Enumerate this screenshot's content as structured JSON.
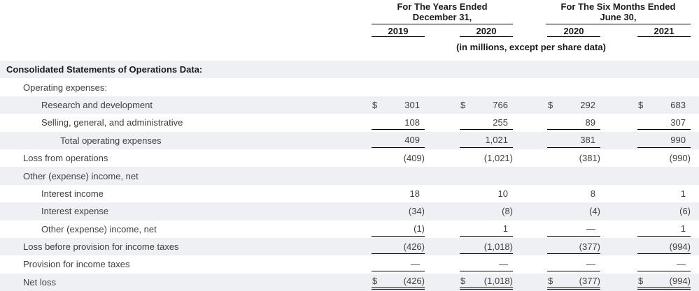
{
  "currency_symbol": "$",
  "header": {
    "group1": {
      "line1": "For The Years Ended",
      "line2": "December 31,"
    },
    "group2": {
      "line1": "For The Six Months Ended",
      "line2": "June 30,"
    },
    "years": [
      "2019",
      "2020",
      "2020",
      "2021"
    ],
    "units_note": "(in millions, except per share data)"
  },
  "table": {
    "rows": [
      {
        "label": "Consolidated Statements of Operations Data:",
        "values": []
      },
      {
        "label": "Operating expenses:",
        "values": []
      },
      {
        "label": "Research and development",
        "values": [
          "301",
          "766",
          "292",
          "683"
        ]
      },
      {
        "label": "Selling, general, and administrative",
        "values": [
          "108",
          "255",
          "89",
          "307"
        ]
      },
      {
        "label": "Total operating expenses",
        "values": [
          "409",
          "1,021",
          "381",
          "990"
        ]
      },
      {
        "label": "Loss from operations",
        "values": [
          "(409)",
          "(1,021)",
          "(381)",
          "(990)"
        ]
      },
      {
        "label": "Other (expense) income, net",
        "values": []
      },
      {
        "label": "Interest income",
        "values": [
          "18",
          "10",
          "8",
          "1"
        ]
      },
      {
        "label": "Interest expense",
        "values": [
          "(34)",
          "(8)",
          "(4)",
          "(6)"
        ]
      },
      {
        "label": "Other (expense) income, net",
        "values": [
          "(1)",
          "1",
          "—",
          "1"
        ]
      },
      {
        "label": "Loss before provision for income taxes",
        "values": [
          "(426)",
          "(1,018)",
          "(377)",
          "(994)"
        ]
      },
      {
        "label": "Provision for income taxes",
        "values": [
          "—",
          "—",
          "—",
          "—"
        ]
      },
      {
        "label": "Net loss",
        "values": [
          "(426)",
          "(1,018)",
          "(377)",
          "(994)"
        ]
      }
    ]
  },
  "colors": {
    "row_shade": "#eef0f4",
    "text": "#3f3f3f",
    "heading_text": "#1a1a1a",
    "rule": "#000000"
  }
}
